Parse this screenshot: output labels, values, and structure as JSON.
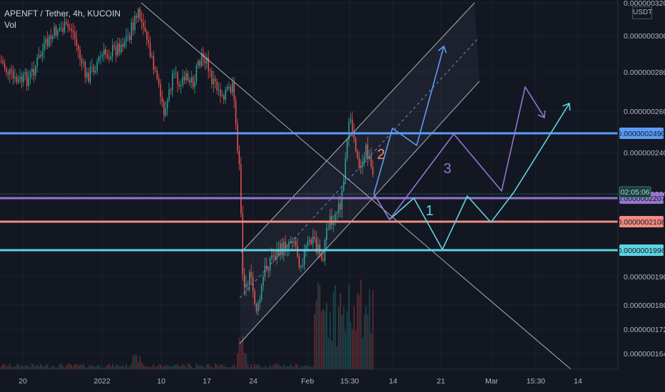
{
  "header": {
    "symbol_line": "APENFT / Tether, 4h, KUCOIN",
    "vol_label": "Vol",
    "currency_button": "USDT"
  },
  "colors": {
    "background": "#131722",
    "grid": "#1e2230",
    "up": "#26a69a",
    "down": "#ef5350",
    "resistance": "#5b9cf6",
    "purple": "#9575cd",
    "red": "#f28b82",
    "cyan": "#5ed4e0",
    "channel": "#cfd3dc"
  },
  "chart_data": {
    "type": "candlestick",
    "title": "",
    "xlabel": "",
    "ylabel": "",
    "x_ticks": [
      "20",
      "2022",
      "10",
      "17",
      "24",
      "Feb",
      "15:30",
      "14",
      "21",
      "Mar",
      "15:30",
      "14"
    ],
    "y_ticks": [
      "0.0000003200",
      "0.0000003000",
      "0.0000002800",
      "0.0000002600",
      "0.0000002400",
      "0.0000002200",
      "0.0000001900",
      "0.0000001800",
      "0.0000001720",
      "0.0000001640"
    ],
    "horizontal_levels": [
      {
        "value": "0.0000002490",
        "color": "#5b9cf6"
      },
      {
        "value": "0.0000002207",
        "color": "#9575cd"
      },
      {
        "value": "0.0000002108",
        "color": "#f28b82"
      },
      {
        "value": "0.0000001996",
        "color": "#5ed4e0"
      }
    ],
    "countdown": "02:05:06",
    "scenario_labels": [
      {
        "text": "1",
        "color": "#5ed4e0"
      },
      {
        "text": "2",
        "color": "#f28b82"
      },
      {
        "text": "3",
        "color": "#9575cd"
      }
    ]
  }
}
